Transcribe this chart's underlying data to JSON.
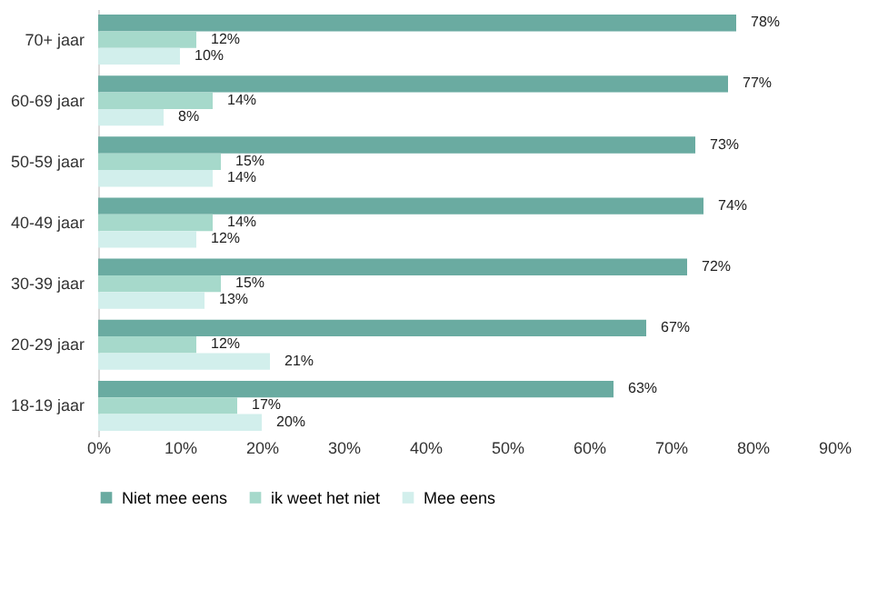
{
  "chart_data": {
    "type": "bar",
    "orientation": "horizontal",
    "categories": [
      "70+ jaar",
      "60-69 jaar",
      "50-59 jaar",
      "40-49 jaar",
      "30-39 jaar",
      "20-29 jaar",
      "18-19 jaar"
    ],
    "series": [
      {
        "name": "Niet mee eens",
        "color": "#6aaba1",
        "values": [
          78,
          77,
          73,
          74,
          72,
          67,
          63
        ],
        "value_labels": [
          "78%",
          "77%",
          "73%",
          "74%",
          "72%",
          "67%",
          "63%"
        ]
      },
      {
        "name": "ik weet het niet",
        "color": "#a6d9cb",
        "values": [
          12,
          14,
          15,
          14,
          15,
          12,
          17
        ],
        "value_labels": [
          "12%",
          "14%",
          "15%",
          "14%",
          "15%",
          "12%",
          "17%"
        ]
      },
      {
        "name": "Mee eens",
        "color": "#d2efec",
        "values": [
          10,
          8,
          14,
          12,
          13,
          21,
          20
        ],
        "value_labels": [
          "10%",
          "8%",
          "14%",
          "12%",
          "13%",
          "21%",
          "20%"
        ]
      }
    ],
    "xlim": [
      0,
      90
    ],
    "xticks": [
      {
        "value": 0,
        "label": "0%"
      },
      {
        "value": 10,
        "label": "10%"
      },
      {
        "value": 20,
        "label": "20%"
      },
      {
        "value": 30,
        "label": "30%"
      },
      {
        "value": 40,
        "label": "40%"
      },
      {
        "value": 50,
        "label": "50%"
      },
      {
        "value": 60,
        "label": "60%"
      },
      {
        "value": 70,
        "label": "70%"
      },
      {
        "value": 80,
        "label": "80%"
      },
      {
        "value": 90,
        "label": "90%"
      }
    ],
    "legend": "bottom",
    "grid": false
  }
}
